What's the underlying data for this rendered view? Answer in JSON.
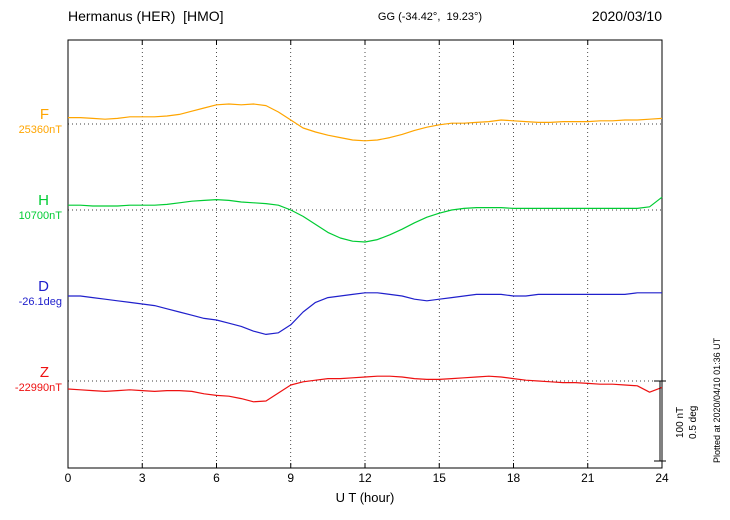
{
  "header": {
    "station": "Hermanus (HER)  [HMO]",
    "coords": "GG (-34.42°,  19.23°)",
    "date": "2020/03/10"
  },
  "axis": {
    "xlabel": "U T (hour)",
    "ticks": [
      0,
      3,
      6,
      9,
      12,
      15,
      18,
      21,
      24
    ],
    "grid_hours": [
      3,
      6,
      9,
      12,
      15,
      18,
      21
    ],
    "xmin": 0,
    "xmax": 24
  },
  "scale": {
    "nT_label": "100 nT",
    "deg_label": "0.5 deg",
    "nT_per_bar": 100,
    "deg_per_bar": 0.5
  },
  "footer_note": "Plotted at 2020/04/10 01:36 UT",
  "chart_data": {
    "type": "line",
    "title": "Hermanus (HER) [HMO] magnetogram 2020/03/10",
    "xlabel": "U T (hour)",
    "xlim": [
      0,
      24
    ],
    "grid": "dotted vertical every 3 h, dotted horizontal baselines",
    "x_hours": [
      0,
      0.5,
      1,
      1.5,
      2,
      2.5,
      3,
      3.5,
      4,
      4.5,
      5,
      5.5,
      6,
      6.5,
      7,
      7.5,
      8,
      8.5,
      9,
      9.5,
      10,
      10.5,
      11,
      11.5,
      12,
      12.5,
      13,
      13.5,
      14,
      14.5,
      15,
      15.5,
      16,
      16.5,
      17,
      17.5,
      18,
      18.5,
      19,
      19.5,
      20,
      20.5,
      21,
      21.5,
      22,
      22.5,
      23,
      23.5,
      24
    ],
    "series": [
      {
        "name": "F",
        "label": "F",
        "base_label": "25360nT",
        "base_value": 25360,
        "unit": "nT",
        "color": "#FFA500",
        "baseline_dotted": true,
        "values": [
          25368,
          25368,
          25367,
          25366,
          25367,
          25369,
          25369,
          25369,
          25370,
          25372,
          25376,
          25380,
          25384,
          25385,
          25384,
          25385,
          25383,
          25375,
          25365,
          25355,
          25350,
          25346,
          25343,
          25340,
          25339,
          25340,
          25343,
          25347,
          25352,
          25356,
          25359,
          25361,
          25361,
          25362,
          25363,
          25365,
          25364,
          25363,
          25362,
          25362,
          25363,
          25363,
          25363,
          25364,
          25364,
          25365,
          25365,
          25366,
          25367
        ]
      },
      {
        "name": "H",
        "label": "H",
        "base_label": "10700nT",
        "base_value": 10700,
        "unit": "nT",
        "color": "#00CC33",
        "baseline_dotted": true,
        "values": [
          10706,
          10706,
          10705,
          10705,
          10705,
          10706,
          10706,
          10706,
          10707,
          10709,
          10711,
          10712,
          10713,
          10712,
          10710,
          10709,
          10708,
          10706,
          10700,
          10692,
          10682,
          10672,
          10665,
          10661,
          10660,
          10663,
          10669,
          10676,
          10684,
          10691,
          10696,
          10700,
          10702,
          10703,
          10703,
          10703,
          10702,
          10702,
          10702,
          10702,
          10702,
          10702,
          10702,
          10702,
          10702,
          10702,
          10702,
          10704,
          10716
        ]
      },
      {
        "name": "D",
        "label": "D",
        "base_label": "-26.1deg",
        "base_value": -26.1,
        "unit": "deg",
        "color": "#2020CC",
        "baseline_dotted": false,
        "values": [
          -26.1,
          -26.1,
          -26.11,
          -26.12,
          -26.13,
          -26.14,
          -26.15,
          -26.16,
          -26.18,
          -26.2,
          -26.22,
          -26.24,
          -26.25,
          -26.27,
          -26.29,
          -26.32,
          -26.34,
          -26.33,
          -26.28,
          -26.2,
          -26.14,
          -26.11,
          -26.1,
          -26.09,
          -26.08,
          -26.08,
          -26.09,
          -26.1,
          -26.12,
          -26.13,
          -26.12,
          -26.11,
          -26.1,
          -26.09,
          -26.09,
          -26.09,
          -26.1,
          -26.1,
          -26.09,
          -26.09,
          -26.09,
          -26.09,
          -26.09,
          -26.09,
          -26.09,
          -26.09,
          -26.08,
          -26.08,
          -26.08
        ]
      },
      {
        "name": "Z",
        "label": "Z",
        "base_label": "-22990nT",
        "base_value": -22990,
        "unit": "nT",
        "color": "#EE1111",
        "baseline_dotted": true,
        "values": [
          -23000,
          -23001,
          -23002,
          -23003,
          -23002,
          -23001,
          -23002,
          -23003,
          -23002,
          -23002,
          -23003,
          -23006,
          -23008,
          -23009,
          -23012,
          -23016,
          -23015,
          -23005,
          -22995,
          -22991,
          -22989,
          -22987,
          -22987,
          -22986,
          -22985,
          -22984,
          -22984,
          -22985,
          -22987,
          -22988,
          -22988,
          -22987,
          -22986,
          -22985,
          -22984,
          -22985,
          -22987,
          -22989,
          -22990,
          -22991,
          -22992,
          -22992,
          -22993,
          -22994,
          -22994,
          -22995,
          -22996,
          -23004,
          -22998
        ]
      }
    ]
  }
}
